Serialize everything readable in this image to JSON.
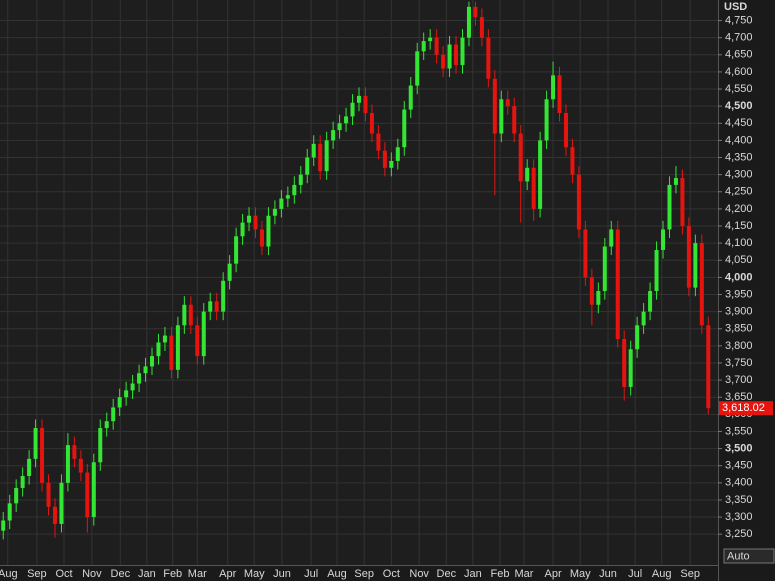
{
  "chart_data": {
    "type": "candlestick",
    "y_axis_label": "USD",
    "button": "Auto",
    "last_price_label": "3,618.02",
    "up_color": "#33e633",
    "down_color": "#e6140f",
    "grid": true,
    "xlim": [
      -0.5,
      110.5
    ],
    "ylim": [
      3160,
      4810
    ],
    "xticks": [
      {
        "value": 0.7,
        "label": "Aug"
      },
      {
        "value": 5.2,
        "label": "Sep"
      },
      {
        "value": 9.4,
        "label": "Oct"
      },
      {
        "value": 13.7,
        "label": "Nov"
      },
      {
        "value": 18.1,
        "label": "Dec"
      },
      {
        "value": 22.2,
        "label": "Jan"
      },
      {
        "value": 26.2,
        "label": "Feb"
      },
      {
        "value": 30.0,
        "label": "Mar"
      },
      {
        "value": 34.7,
        "label": "Apr"
      },
      {
        "value": 38.8,
        "label": "May"
      },
      {
        "value": 43.1,
        "label": "Jun"
      },
      {
        "value": 47.6,
        "label": "Jul"
      },
      {
        "value": 51.6,
        "label": "Aug"
      },
      {
        "value": 55.8,
        "label": "Sep"
      },
      {
        "value": 60.0,
        "label": "Oct"
      },
      {
        "value": 64.3,
        "label": "Nov"
      },
      {
        "value": 68.5,
        "label": "Dec"
      },
      {
        "value": 72.6,
        "label": "Jan"
      },
      {
        "value": 76.8,
        "label": "Feb"
      },
      {
        "value": 80.5,
        "label": "Mar"
      },
      {
        "value": 85.0,
        "label": "Apr"
      },
      {
        "value": 89.2,
        "label": "May"
      },
      {
        "value": 93.5,
        "label": "Jun"
      },
      {
        "value": 97.7,
        "label": "Jul"
      },
      {
        "value": 101.8,
        "label": "Aug"
      },
      {
        "value": 106.2,
        "label": "Sep"
      }
    ],
    "yticks": [
      {
        "value": 3250,
        "label": "3,250"
      },
      {
        "value": 3300,
        "label": "3,300"
      },
      {
        "value": 3350,
        "label": "3,350"
      },
      {
        "value": 3400,
        "label": "3,400"
      },
      {
        "value": 3450,
        "label": "3,450"
      },
      {
        "value": 3500,
        "label": "3,500"
      },
      {
        "value": 3550,
        "label": "3,550"
      },
      {
        "value": 3600,
        "label": "3,600"
      },
      {
        "value": 3650,
        "label": "3,650"
      },
      {
        "value": 3700,
        "label": "3,700"
      },
      {
        "value": 3750,
        "label": "3,750"
      },
      {
        "value": 3800,
        "label": "3,800"
      },
      {
        "value": 3850,
        "label": "3,850"
      },
      {
        "value": 3900,
        "label": "3,900"
      },
      {
        "value": 3950,
        "label": "3,950"
      },
      {
        "value": 4000,
        "label": "4,000"
      },
      {
        "value": 4050,
        "label": "4,050"
      },
      {
        "value": 4100,
        "label": "4,100"
      },
      {
        "value": 4150,
        "label": "4,150"
      },
      {
        "value": 4200,
        "label": "4,200"
      },
      {
        "value": 4250,
        "label": "4,250"
      },
      {
        "value": 4300,
        "label": "4,300"
      },
      {
        "value": 4350,
        "label": "4,350"
      },
      {
        "value": 4400,
        "label": "4,400"
      },
      {
        "value": 4450,
        "label": "4,450"
      },
      {
        "value": 4500,
        "label": "4,500"
      },
      {
        "value": 4550,
        "label": "4,550"
      },
      {
        "value": 4600,
        "label": "4,600"
      },
      {
        "value": 4650,
        "label": "4,650"
      },
      {
        "value": 4700,
        "label": "4,700"
      },
      {
        "value": 4750,
        "label": "4,750"
      }
    ],
    "open": [
      3260,
      3290,
      3340,
      3385,
      3420,
      3470,
      3560,
      3400,
      3330,
      3280,
      3400,
      3510,
      3470,
      3430,
      3300,
      3460,
      3560,
      3580,
      3620,
      3650,
      3670,
      3690,
      3720,
      3740,
      3770,
      3810,
      3830,
      3730,
      3860,
      3920,
      3860,
      3770,
      3900,
      3930,
      3900,
      3990,
      4040,
      4120,
      4160,
      4180,
      4140,
      4090,
      4180,
      4200,
      4230,
      4240,
      4270,
      4300,
      4350,
      4390,
      4310,
      4400,
      4430,
      4450,
      4470,
      4510,
      4530,
      4480,
      4420,
      4370,
      4320,
      4340,
      4380,
      4490,
      4560,
      4660,
      4690,
      4700,
      4650,
      4610,
      4680,
      4620,
      4700,
      4790,
      4760,
      4700,
      4580,
      4420,
      4520,
      4500,
      4420,
      4280,
      4320,
      4200,
      4400,
      4520,
      4590,
      4480,
      4380,
      4300,
      4140,
      4000,
      3920,
      3960,
      4090,
      4140,
      3820,
      3680,
      3790,
      3860,
      3900,
      3960,
      4080,
      4140,
      4270,
      4290,
      4150,
      3970,
      4100,
      3860
    ],
    "high": [
      3315,
      3365,
      3410,
      3445,
      3495,
      3585,
      3585,
      3425,
      3355,
      3425,
      3545,
      3535,
      3495,
      3455,
      3485,
      3585,
      3605,
      3645,
      3675,
      3695,
      3715,
      3745,
      3765,
      3795,
      3835,
      3855,
      3855,
      3885,
      3945,
      3945,
      3885,
      3925,
      3955,
      3955,
      4015,
      4065,
      4145,
      4185,
      4205,
      4205,
      4165,
      4205,
      4225,
      4255,
      4265,
      4295,
      4325,
      4375,
      4415,
      4415,
      4425,
      4455,
      4475,
      4495,
      4535,
      4555,
      4555,
      4505,
      4445,
      4395,
      4365,
      4405,
      4515,
      4585,
      4685,
      4715,
      4725,
      4725,
      4675,
      4705,
      4705,
      4725,
      4805,
      4805,
      4785,
      4725,
      4605,
      4545,
      4545,
      4525,
      4445,
      4345,
      4345,
      4425,
      4545,
      4630,
      4615,
      4505,
      4405,
      4325,
      4165,
      4025,
      3985,
      4115,
      4165,
      4165,
      3845,
      3815,
      3885,
      3925,
      3985,
      4105,
      4165,
      4295,
      4325,
      4315,
      4175,
      4125,
      4125,
      3885
    ],
    "low": [
      3235,
      3265,
      3315,
      3360,
      3395,
      3445,
      3375,
      3305,
      3240,
      3255,
      3375,
      3445,
      3405,
      3255,
      3275,
      3435,
      3535,
      3555,
      3595,
      3625,
      3645,
      3665,
      3695,
      3715,
      3745,
      3785,
      3705,
      3705,
      3835,
      3835,
      3745,
      3745,
      3875,
      3875,
      3875,
      3965,
      4015,
      4095,
      4135,
      4115,
      4065,
      4065,
      4155,
      4175,
      4205,
      4215,
      4245,
      4275,
      4325,
      4285,
      4285,
      4375,
      4405,
      4425,
      4445,
      4485,
      4455,
      4395,
      4345,
      4295,
      4295,
      4315,
      4355,
      4465,
      4535,
      4635,
      4665,
      4625,
      4585,
      4585,
      4595,
      4595,
      4675,
      4735,
      4675,
      4555,
      4240,
      4395,
      4475,
      4395,
      4160,
      4255,
      4165,
      4175,
      4375,
      4495,
      4455,
      4355,
      4275,
      4115,
      3975,
      3860,
      3895,
      3935,
      4065,
      3795,
      3640,
      3655,
      3765,
      3835,
      3875,
      3935,
      4055,
      4115,
      4245,
      4125,
      3945,
      3945,
      3835,
      3600
    ],
    "close": [
      3290,
      3340,
      3385,
      3420,
      3470,
      3560,
      3400,
      3330,
      3280,
      3400,
      3510,
      3470,
      3430,
      3300,
      3460,
      3560,
      3580,
      3620,
      3650,
      3670,
      3690,
      3720,
      3740,
      3770,
      3810,
      3830,
      3730,
      3860,
      3920,
      3860,
      3770,
      3900,
      3930,
      3900,
      3990,
      4040,
      4120,
      4160,
      4180,
      4140,
      4090,
      4180,
      4200,
      4230,
      4240,
      4270,
      4300,
      4350,
      4390,
      4310,
      4400,
      4430,
      4450,
      4470,
      4510,
      4530,
      4480,
      4420,
      4370,
      4320,
      4340,
      4380,
      4490,
      4560,
      4660,
      4690,
      4700,
      4650,
      4610,
      4680,
      4620,
      4700,
      4790,
      4760,
      4700,
      4580,
      4420,
      4520,
      4500,
      4420,
      4280,
      4320,
      4200,
      4400,
      4520,
      4590,
      4480,
      4380,
      4300,
      4140,
      4000,
      3920,
      3960,
      4090,
      4140,
      3820,
      3680,
      3790,
      3860,
      3900,
      3960,
      4080,
      4140,
      4270,
      4290,
      4150,
      3970,
      4100,
      3860,
      3618.02
    ]
  }
}
